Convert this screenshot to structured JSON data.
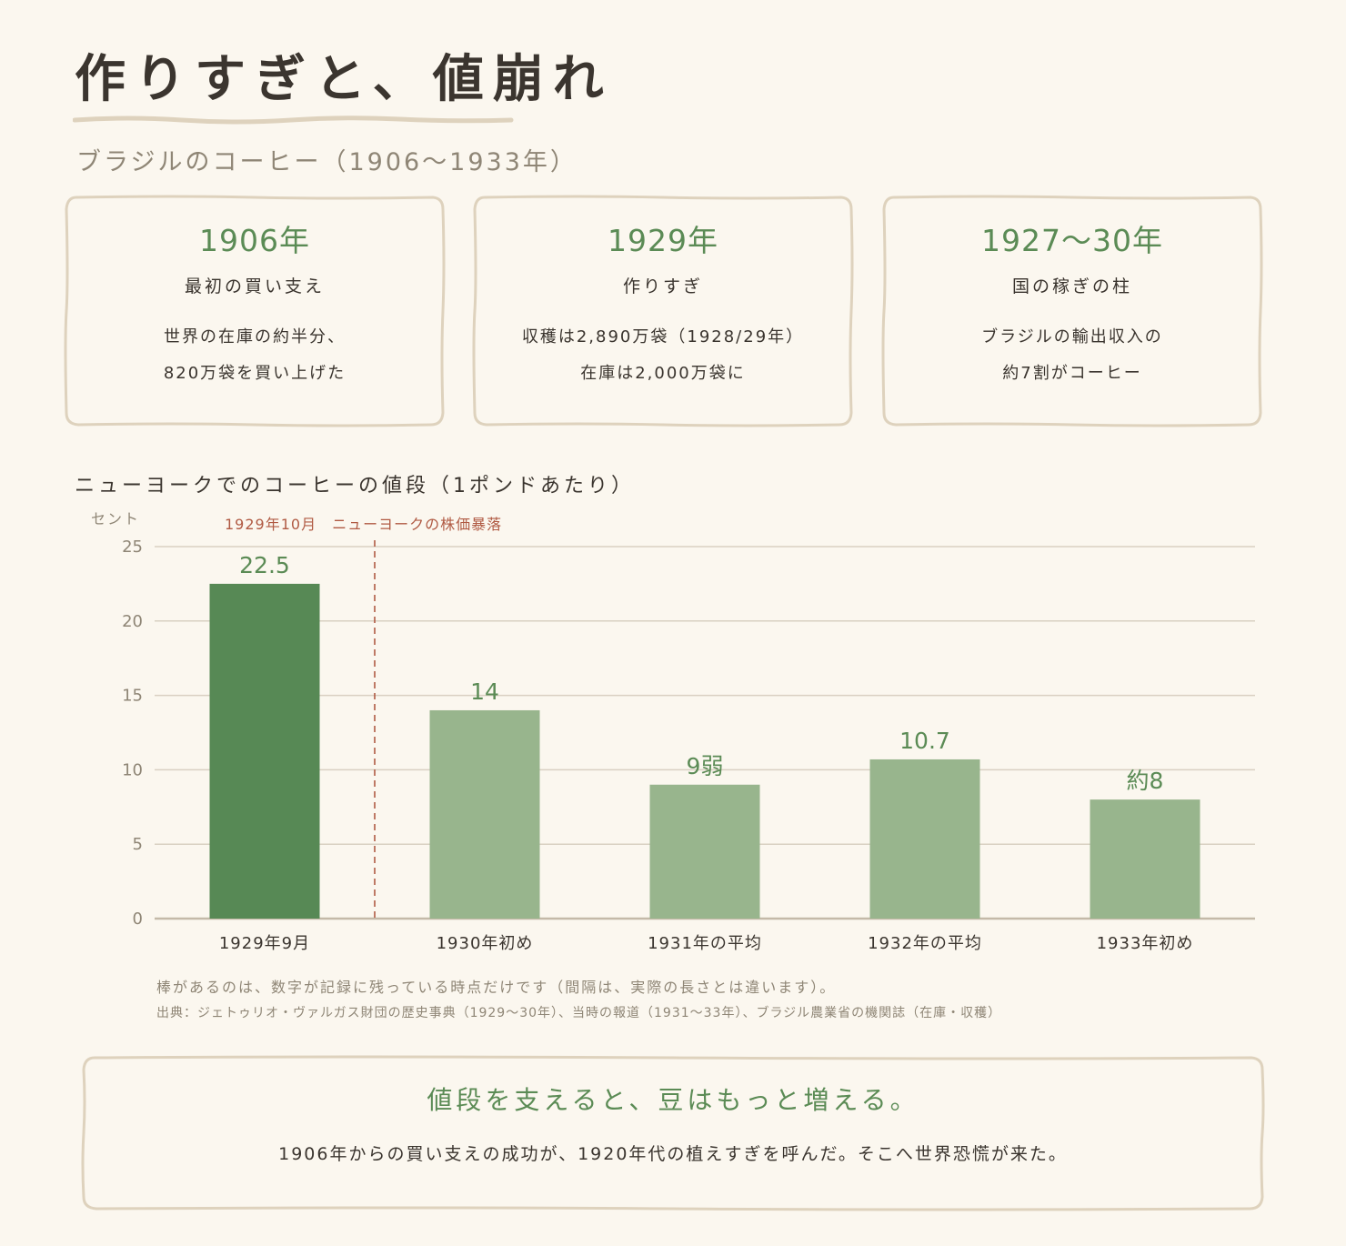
{
  "header": {
    "title": "作りすぎと、値崩れ",
    "subtitle": "ブラジルのコーヒー（1906〜1933年）"
  },
  "cards": [
    {
      "year": "1906年",
      "label": "最初の買い支え",
      "desc1": "世界の在庫の約半分、",
      "desc2": "820万袋を買い上げた"
    },
    {
      "year": "1929年",
      "label": "作りすぎ",
      "desc1": "収穫は2,890万袋（1928/29年）",
      "desc2": "在庫は2,000万袋に"
    },
    {
      "year": "1927〜30年",
      "label": "国の稼ぎの柱",
      "desc1": "ブラジルの輸出収入の",
      "desc2": "約7割がコーヒー"
    }
  ],
  "chart": {
    "heading": "ニューヨークでのコーヒーの値段（1ポンドあたり）",
    "note": "棒があるのは、数字が記録に残っている時点だけです（間隔は、実際の長さとは違います）。",
    "source": "出典：ジェトゥリオ・ヴァルガス財団の歴史事典（1929〜30年）、当時の報道（1931〜33年）、ブラジル農業省の機関誌（在庫・収穫）"
  },
  "chart_data": {
    "type": "bar",
    "ylabel": "セント",
    "ylim": [
      0,
      25
    ],
    "yticks": [
      0,
      5,
      10,
      15,
      20,
      25
    ],
    "categories": [
      "1929年9月",
      "1930年初め",
      "1931年の平均",
      "1932年の平均",
      "1933年初め"
    ],
    "values": [
      22.5,
      14,
      9,
      10.7,
      8
    ],
    "value_labels": [
      "22.5",
      "14",
      "9弱",
      "10.7",
      "約8"
    ],
    "highlight_index": 0,
    "annotation": {
      "text": "1929年10月　ニューヨークの株価暴落",
      "between": [
        0,
        1
      ]
    },
    "grid": true,
    "colors": {
      "highlight": "#578955",
      "normal": "#98b58d",
      "label": "#5b8b55",
      "annotation": "#b05a43"
    }
  },
  "conclusion": {
    "headline": "値段を支えると、豆はもっと増える。",
    "body": "1906年からの買い支えの成功が、1920年代の植えすぎを呼んだ。そこへ世界恐慌が来た。"
  }
}
